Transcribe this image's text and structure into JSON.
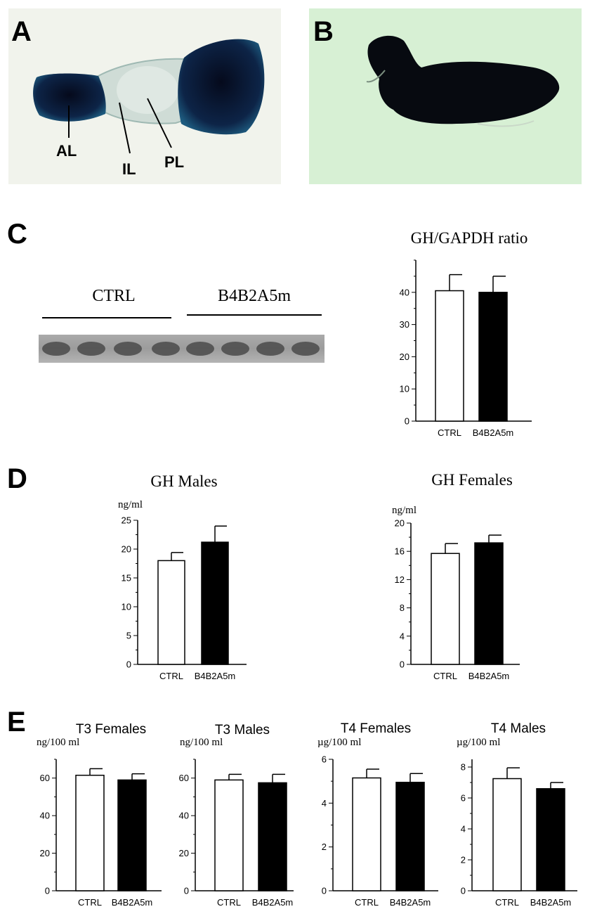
{
  "panels": {
    "a": {
      "letter": "A",
      "labels": [
        "AL",
        "IL",
        "PL"
      ]
    },
    "b": {
      "letter": "B"
    },
    "c": {
      "letter": "C",
      "blot_groups": [
        "CTRL",
        "B4B2A5m"
      ]
    },
    "d": {
      "letter": "D"
    },
    "e": {
      "letter": "E"
    }
  },
  "colors": {
    "ctrl_fill": "#ffffff",
    "mutant_fill": "#000000",
    "stain": "#0d2447",
    "tissue_a_bg": "#f1f3ec",
    "tissue_b_bg": "#d7f0d4"
  },
  "chart_data": [
    {
      "id": "gh-gapdh",
      "type": "bar",
      "title": "GH/GAPDH ratio",
      "ylabel": "",
      "categories": [
        "CTRL",
        "B4B2A5m"
      ],
      "values": [
        40.5,
        40
      ],
      "errors": [
        5,
        5
      ],
      "ylim": [
        0,
        50
      ],
      "yticks": [
        0,
        10,
        20,
        30,
        40
      ]
    },
    {
      "id": "gh-males",
      "type": "bar",
      "title": "GH Males",
      "ylabel": "ng/ml",
      "categories": [
        "CTRL",
        "B4B2A5m"
      ],
      "values": [
        18,
        21.2
      ],
      "errors": [
        1.4,
        2.8
      ],
      "ylim": [
        0,
        25
      ],
      "yticks": [
        0,
        5,
        10,
        15,
        20,
        25
      ]
    },
    {
      "id": "gh-females",
      "type": "bar",
      "title": "GH Females",
      "ylabel": "ng/ml",
      "categories": [
        "CTRL",
        "B4B2A5m"
      ],
      "values": [
        15.7,
        17.2
      ],
      "errors": [
        1.4,
        1.1
      ],
      "ylim": [
        0,
        20
      ],
      "yticks": [
        0,
        4,
        8,
        12,
        16,
        20
      ]
    },
    {
      "id": "t3-females",
      "type": "bar",
      "title": "T3 Females",
      "ylabel": "ng/100 ml",
      "categories": [
        "CTRL",
        "B4B2A5m"
      ],
      "values": [
        61.5,
        59
      ],
      "errors": [
        3.5,
        3.3
      ],
      "ylim": [
        0,
        70
      ],
      "yticks": [
        0,
        20,
        40,
        60
      ]
    },
    {
      "id": "t3-males",
      "type": "bar",
      "title": "T3 Males",
      "ylabel": "ng/100 ml",
      "categories": [
        "CTRL",
        "B4B2A5m"
      ],
      "values": [
        59,
        57.5
      ],
      "errors": [
        3,
        4.5
      ],
      "ylim": [
        0,
        70
      ],
      "yticks": [
        0,
        20,
        40,
        60
      ]
    },
    {
      "id": "t4-females",
      "type": "bar",
      "title": "T4 Females",
      "ylabel": "µg/100 ml",
      "categories": [
        "CTRL",
        "B4B2A5m"
      ],
      "values": [
        5.15,
        4.95
      ],
      "errors": [
        0.4,
        0.4
      ],
      "ylim": [
        0,
        6
      ],
      "yticks": [
        0,
        2,
        4,
        6
      ]
    },
    {
      "id": "t4-males",
      "type": "bar",
      "title": "T4 Males",
      "ylabel": "µg/100 ml",
      "categories": [
        "CTRL",
        "B4B2A5m"
      ],
      "values": [
        7.25,
        6.6
      ],
      "errors": [
        0.7,
        0.4
      ],
      "ylim": [
        0,
        8.5
      ],
      "yticks": [
        0,
        2,
        4,
        6,
        8
      ]
    }
  ]
}
